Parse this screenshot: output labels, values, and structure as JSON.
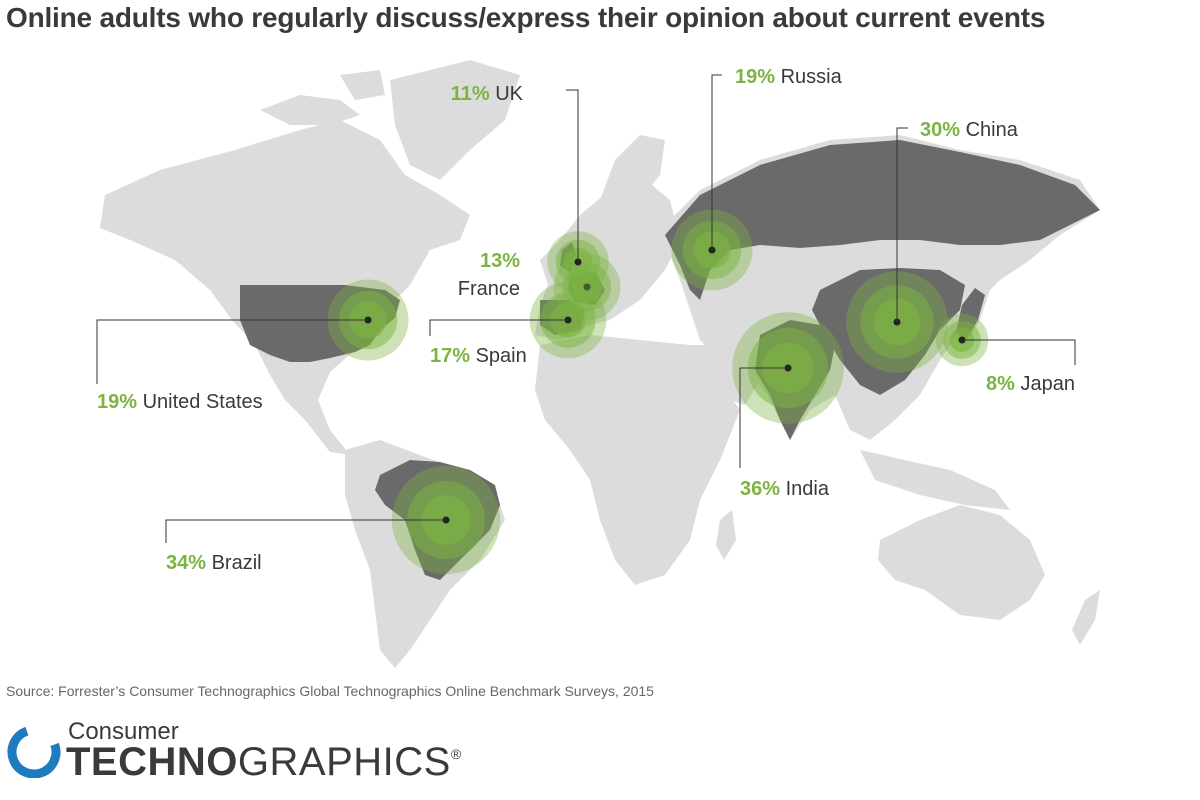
{
  "title": "Online adults who regularly discuss/express their opinion about current events",
  "source": "Source: Forrester’s Consumer Technographics Global Technographics Online Benchmark Surveys, 2015",
  "brand": {
    "line1": "Consumer",
    "line2_bold": "TECHNO",
    "line2_regular": "GRAPHICS",
    "registered": "®"
  },
  "colors": {
    "land": "#dcdcdc",
    "highlighted_country": "#6a6a6a",
    "bubble_green": "#7cb342",
    "percent_text": "#7cb342",
    "leader_line": "#333333"
  },
  "chart_data": {
    "type": "map",
    "metric": "Online adults who regularly discuss/express their opinion about current events",
    "points": [
      {
        "country": "UK",
        "value": 11,
        "label": "11%"
      },
      {
        "country": "Russia",
        "value": 19,
        "label": "19%"
      },
      {
        "country": "China",
        "value": 30,
        "label": "30%"
      },
      {
        "country": "France",
        "value": 13,
        "label": "13%"
      },
      {
        "country": "Spain",
        "value": 17,
        "label": "17%"
      },
      {
        "country": "United States",
        "value": 19,
        "label": "19%"
      },
      {
        "country": "Japan",
        "value": 8,
        "label": "8%"
      },
      {
        "country": "India",
        "value": 36,
        "label": "36%"
      },
      {
        "country": "Brazil",
        "value": 34,
        "label": "34%"
      }
    ]
  }
}
